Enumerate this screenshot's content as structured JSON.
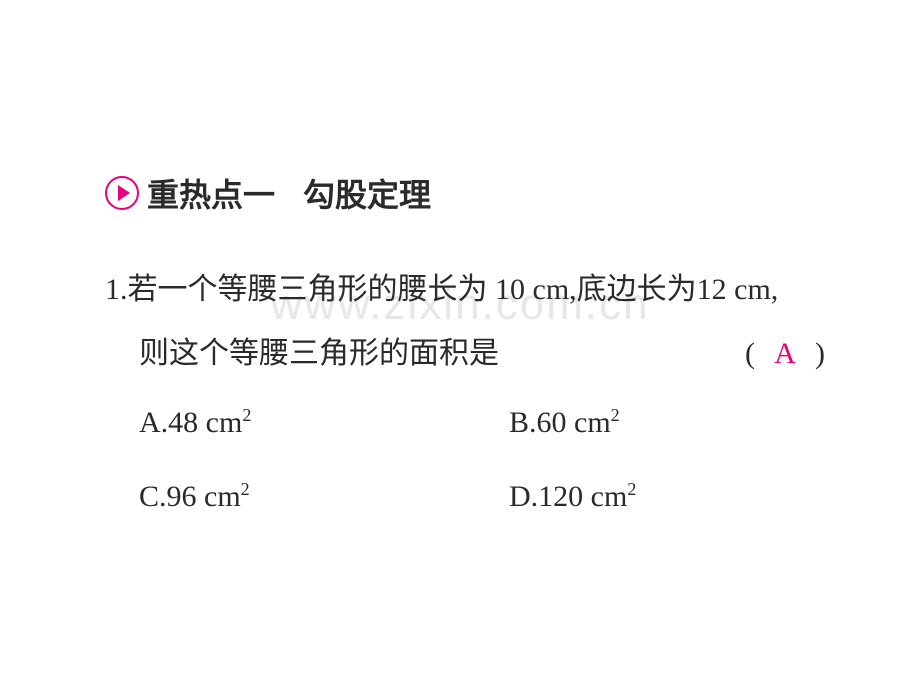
{
  "watermark": "www.zixin.com.cn",
  "colors": {
    "text": "#2a2a2a",
    "accent": "#e6007e",
    "watermark": "#e7e7e7",
    "background": "#ffffff"
  },
  "heading": {
    "label": "重热点一",
    "topic": "勾股定理"
  },
  "question": {
    "number": "1.",
    "line1": "若一个等腰三角形的腰长为 10 cm,底边长为12 cm,",
    "line2": "则这个等腰三角形的面积是",
    "paren_open": "(",
    "paren_close": ")",
    "answer": "A"
  },
  "options": {
    "A": {
      "label": "A.",
      "value": "48",
      "unit": "cm",
      "exp": "2"
    },
    "B": {
      "label": "B.",
      "value": "60",
      "unit": "cm",
      "exp": "2"
    },
    "C": {
      "label": "C.",
      "value": "96",
      "unit": "cm",
      "exp": "2"
    },
    "D": {
      "label": "D.",
      "value": "120",
      "unit": "cm",
      "exp": "2"
    }
  }
}
